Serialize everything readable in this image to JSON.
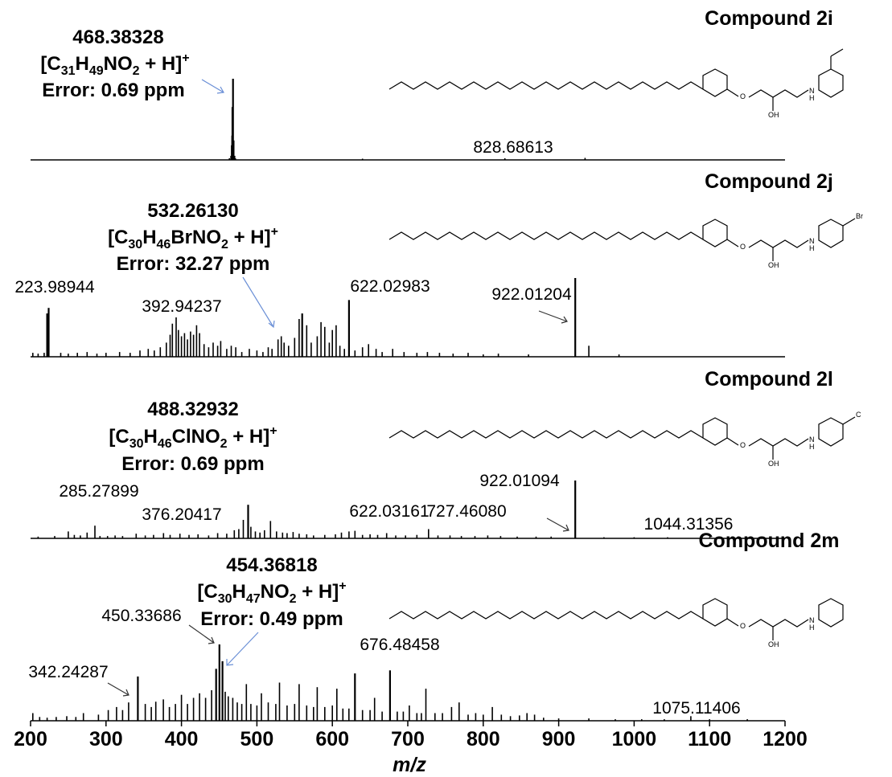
{
  "x_axis": {
    "label": "m/z",
    "min": 200,
    "max": 1200,
    "ticks": [
      "200",
      "300",
      "400",
      "500",
      "600",
      "700",
      "800",
      "900",
      "1000",
      "1100",
      "1200"
    ]
  },
  "chart_data": [
    {
      "type": "bar",
      "title": "Compound 2i",
      "xlabel": "m/z",
      "xlim": [
        200,
        1200
      ],
      "main_ion": {
        "mz": "468.38328",
        "formula": "[C31H49NO2 + H]+",
        "error": "Error: 0.69 ppm"
      },
      "formula_parts": {
        "pre": "[C",
        "s1": "31",
        "m1": "H",
        "s2": "49",
        "m2": "NO",
        "s3": "2",
        "post": " + H]",
        "sup": "+"
      },
      "labeled_peaks": [
        {
          "mz": 468.38328,
          "label": "468.38328"
        },
        {
          "mz": 828.68613,
          "label": "828.68613"
        }
      ],
      "peaks": [
        [
          463.5,
          0.02
        ],
        [
          465.6,
          0.05
        ],
        [
          466.4,
          0.18
        ],
        [
          467.0,
          0.3
        ],
        [
          467.6,
          0.65
        ],
        [
          468.38,
          1.0
        ],
        [
          469.4,
          0.24
        ],
        [
          470.6,
          0.05
        ],
        [
          471.5,
          0.02
        ],
        [
          640.0,
          0.015
        ],
        [
          828.69,
          0.02
        ],
        [
          935.0,
          0.025
        ]
      ]
    },
    {
      "type": "bar",
      "title": "Compound 2j",
      "xlabel": "m/z",
      "xlim": [
        200,
        1200
      ],
      "main_ion": {
        "mz": "532.26130",
        "formula": "[C30H46BrNO2 + H]+",
        "error": "Error: 32.27 ppm"
      },
      "formula_parts": {
        "pre": "[C",
        "s1": "30",
        "m1": "H",
        "s2": "46",
        "m2": "BrNO",
        "s3": "2",
        "post": " + H]",
        "sup": "+"
      },
      "labeled_peaks": [
        {
          "mz": 223.98944,
          "label": "223.98944"
        },
        {
          "mz": 392.94237,
          "label": "392.94237"
        },
        {
          "mz": 622.02983,
          "label": "622.02983"
        },
        {
          "mz": 922.01204,
          "label": "922.01204"
        }
      ],
      "peaks": [
        [
          203,
          0.05
        ],
        [
          210,
          0.04
        ],
        [
          218,
          0.05
        ],
        [
          222,
          0.55
        ],
        [
          223.99,
          0.62
        ],
        [
          240,
          0.05
        ],
        [
          250,
          0.04
        ],
        [
          262,
          0.05
        ],
        [
          275,
          0.06
        ],
        [
          288,
          0.04
        ],
        [
          300,
          0.05
        ],
        [
          318,
          0.06
        ],
        [
          332,
          0.05
        ],
        [
          345,
          0.08
        ],
        [
          356,
          0.1
        ],
        [
          364,
          0.08
        ],
        [
          372,
          0.12
        ],
        [
          380,
          0.18
        ],
        [
          385,
          0.28
        ],
        [
          388,
          0.42
        ],
        [
          392.94,
          0.5
        ],
        [
          396,
          0.34
        ],
        [
          400,
          0.26
        ],
        [
          404,
          0.3
        ],
        [
          408,
          0.22
        ],
        [
          412,
          0.32
        ],
        [
          416,
          0.28
        ],
        [
          420,
          0.4
        ],
        [
          424,
          0.3
        ],
        [
          430,
          0.16
        ],
        [
          436,
          0.12
        ],
        [
          442,
          0.18
        ],
        [
          448,
          0.14
        ],
        [
          452,
          0.2
        ],
        [
          460,
          0.1
        ],
        [
          466,
          0.14
        ],
        [
          472,
          0.12
        ],
        [
          480,
          0.06
        ],
        [
          490,
          0.1
        ],
        [
          500,
          0.08
        ],
        [
          508,
          0.06
        ],
        [
          515,
          0.12
        ],
        [
          520,
          0.1
        ],
        [
          528,
          0.22
        ],
        [
          532.26,
          0.26
        ],
        [
          536,
          0.18
        ],
        [
          542,
          0.14
        ],
        [
          550,
          0.24
        ],
        [
          556,
          0.48
        ],
        [
          560,
          0.55
        ],
        [
          566,
          0.4
        ],
        [
          572,
          0.18
        ],
        [
          580,
          0.26
        ],
        [
          585,
          0.44
        ],
        [
          590,
          0.38
        ],
        [
          596,
          0.18
        ],
        [
          600,
          0.34
        ],
        [
          605,
          0.4
        ],
        [
          610,
          0.14
        ],
        [
          616,
          0.1
        ],
        [
          622.03,
          0.72
        ],
        [
          630,
          0.08
        ],
        [
          640,
          0.12
        ],
        [
          648,
          0.16
        ],
        [
          658,
          0.1
        ],
        [
          666,
          0.06
        ],
        [
          680,
          0.1
        ],
        [
          695,
          0.06
        ],
        [
          712,
          0.05
        ],
        [
          726,
          0.06
        ],
        [
          742,
          0.05
        ],
        [
          760,
          0.04
        ],
        [
          780,
          0.05
        ],
        [
          800,
          0.03
        ],
        [
          820,
          0.04
        ],
        [
          860,
          0.03
        ],
        [
          922.01,
          1.0
        ],
        [
          940,
          0.14
        ],
        [
          980,
          0.03
        ]
      ]
    },
    {
      "type": "bar",
      "title": "Compound 2l",
      "xlabel": "m/z",
      "xlim": [
        200,
        1200
      ],
      "main_ion": {
        "mz": "488.32932",
        "formula": "[C30H46ClNO2 + H]+",
        "error": "Error: 0.69 ppm"
      },
      "formula_parts": {
        "pre": "[C",
        "s1": "30",
        "m1": "H",
        "s2": "46",
        "m2": "ClNO",
        "s3": "2",
        "post": " + H]",
        "sup": "+"
      },
      "labeled_peaks": [
        {
          "mz": 285.27899,
          "label": "285.27899"
        },
        {
          "mz": 376.20417,
          "label": "376.20417"
        },
        {
          "mz": 488.32932,
          "label": "488.32932"
        },
        {
          "mz": 622.03161,
          "label": "622.03161"
        },
        {
          "mz": 727.4608,
          "label": "727.46080"
        },
        {
          "mz": 922.01094,
          "label": "922.01094"
        },
        {
          "mz": 1044.31356,
          "label": "1044.31356"
        }
      ],
      "peaks": [
        [
          210,
          0.03
        ],
        [
          232,
          0.04
        ],
        [
          250,
          0.12
        ],
        [
          258,
          0.06
        ],
        [
          266,
          0.05
        ],
        [
          275,
          0.1
        ],
        [
          285.28,
          0.22
        ],
        [
          292,
          0.04
        ],
        [
          302,
          0.04
        ],
        [
          312,
          0.05
        ],
        [
          322,
          0.04
        ],
        [
          340,
          0.08
        ],
        [
          352,
          0.05
        ],
        [
          363,
          0.06
        ],
        [
          376.2,
          0.09
        ],
        [
          385,
          0.06
        ],
        [
          398,
          0.08
        ],
        [
          410,
          0.06
        ],
        [
          422,
          0.07
        ],
        [
          436,
          0.05
        ],
        [
          448,
          0.09
        ],
        [
          460,
          0.08
        ],
        [
          470,
          0.14
        ],
        [
          476,
          0.16
        ],
        [
          482,
          0.32
        ],
        [
          488.33,
          0.58
        ],
        [
          492,
          0.2
        ],
        [
          498,
          0.12
        ],
        [
          504,
          0.1
        ],
        [
          510,
          0.14
        ],
        [
          518,
          0.3
        ],
        [
          526,
          0.12
        ],
        [
          534,
          0.1
        ],
        [
          540,
          0.09
        ],
        [
          548,
          0.11
        ],
        [
          556,
          0.08
        ],
        [
          566,
          0.07
        ],
        [
          575,
          0.05
        ],
        [
          590,
          0.06
        ],
        [
          604,
          0.07
        ],
        [
          612,
          0.1
        ],
        [
          622.03,
          0.12
        ],
        [
          630,
          0.13
        ],
        [
          640,
          0.06
        ],
        [
          650,
          0.07
        ],
        [
          660,
          0.06
        ],
        [
          672,
          0.09
        ],
        [
          684,
          0.05
        ],
        [
          697,
          0.05
        ],
        [
          712,
          0.06
        ],
        [
          727.46,
          0.16
        ],
        [
          740,
          0.05
        ],
        [
          756,
          0.05
        ],
        [
          771,
          0.04
        ],
        [
          789,
          0.04
        ],
        [
          806,
          0.05
        ],
        [
          823,
          0.04
        ],
        [
          845,
          0.03
        ],
        [
          870,
          0.03
        ],
        [
          890,
          0.03
        ],
        [
          922.01,
          1.0
        ],
        [
          960,
          0.02
        ],
        [
          1000,
          0.02
        ],
        [
          1044.31,
          0.02
        ],
        [
          1100,
          0.02
        ],
        [
          1150,
          0.02
        ]
      ]
    },
    {
      "type": "bar",
      "title": "Compound 2m",
      "xlabel": "m/z",
      "xlim": [
        200,
        1200
      ],
      "main_ion": {
        "mz": "454.36818",
        "formula": "[C30H47NO2 + H]+",
        "error": "Error: 0.49 ppm"
      },
      "formula_parts": {
        "pre": "[C",
        "s1": "30",
        "m1": "H",
        "s2": "47",
        "m2": "NO",
        "s3": "2",
        "post": " + H]",
        "sup": "+"
      },
      "labeled_peaks": [
        {
          "mz": 342.24287,
          "label": "342.24287"
        },
        {
          "mz": 450.33686,
          "label": "450.33686"
        },
        {
          "mz": 454.36818,
          "label": "454.36818"
        },
        {
          "mz": 676.48458,
          "label": "676.48458"
        },
        {
          "mz": 1075.11406,
          "label": "1075.11406"
        }
      ],
      "peaks": [
        [
          203,
          0.1
        ],
        [
          212,
          0.05
        ],
        [
          222,
          0.04
        ],
        [
          234,
          0.05
        ],
        [
          248,
          0.06
        ],
        [
          260,
          0.05
        ],
        [
          270,
          0.1
        ],
        [
          290,
          0.08
        ],
        [
          303,
          0.14
        ],
        [
          314,
          0.18
        ],
        [
          322,
          0.14
        ],
        [
          330,
          0.24
        ],
        [
          342.24,
          0.58
        ],
        [
          352,
          0.22
        ],
        [
          360,
          0.18
        ],
        [
          366,
          0.25
        ],
        [
          376,
          0.28
        ],
        [
          384,
          0.18
        ],
        [
          392,
          0.22
        ],
        [
          400,
          0.34
        ],
        [
          408,
          0.22
        ],
        [
          416,
          0.3
        ],
        [
          424,
          0.36
        ],
        [
          432,
          0.3
        ],
        [
          440,
          0.4
        ],
        [
          446,
          0.68
        ],
        [
          450.34,
          1.0
        ],
        [
          454.37,
          0.78
        ],
        [
          458,
          0.38
        ],
        [
          462,
          0.32
        ],
        [
          468,
          0.3
        ],
        [
          474,
          0.24
        ],
        [
          480,
          0.22
        ],
        [
          486,
          0.48
        ],
        [
          492,
          0.22
        ],
        [
          500,
          0.2
        ],
        [
          506,
          0.36
        ],
        [
          515,
          0.24
        ],
        [
          525,
          0.22
        ],
        [
          530,
          0.5
        ],
        [
          540,
          0.2
        ],
        [
          550,
          0.22
        ],
        [
          556,
          0.48
        ],
        [
          566,
          0.2
        ],
        [
          575,
          0.18
        ],
        [
          580,
          0.44
        ],
        [
          590,
          0.18
        ],
        [
          600,
          0.2
        ],
        [
          606,
          0.42
        ],
        [
          614,
          0.16
        ],
        [
          622,
          0.16
        ],
        [
          630,
          0.62
        ],
        [
          640,
          0.14
        ],
        [
          650,
          0.14
        ],
        [
          656,
          0.3
        ],
        [
          666,
          0.12
        ],
        [
          676.48,
          0.66
        ],
        [
          686,
          0.12
        ],
        [
          694,
          0.12
        ],
        [
          702,
          0.2
        ],
        [
          712,
          0.1
        ],
        [
          718,
          0.1
        ],
        [
          724,
          0.42
        ],
        [
          736,
          0.1
        ],
        [
          746,
          0.1
        ],
        [
          758,
          0.18
        ],
        [
          768,
          0.24
        ],
        [
          780,
          0.08
        ],
        [
          790,
          0.1
        ],
        [
          800,
          0.08
        ],
        [
          812,
          0.18
        ],
        [
          824,
          0.08
        ],
        [
          836,
          0.06
        ],
        [
          848,
          0.07
        ],
        [
          858,
          0.1
        ],
        [
          868,
          0.08
        ],
        [
          880,
          0.04
        ],
        [
          900,
          0.03
        ],
        [
          940,
          0.03
        ],
        [
          975,
          0.02
        ],
        [
          1010,
          0.02
        ],
        [
          1040,
          0.02
        ],
        [
          1075.11,
          0.06
        ],
        [
          1100,
          0.02
        ],
        [
          1150,
          0.02
        ]
      ]
    }
  ]
}
